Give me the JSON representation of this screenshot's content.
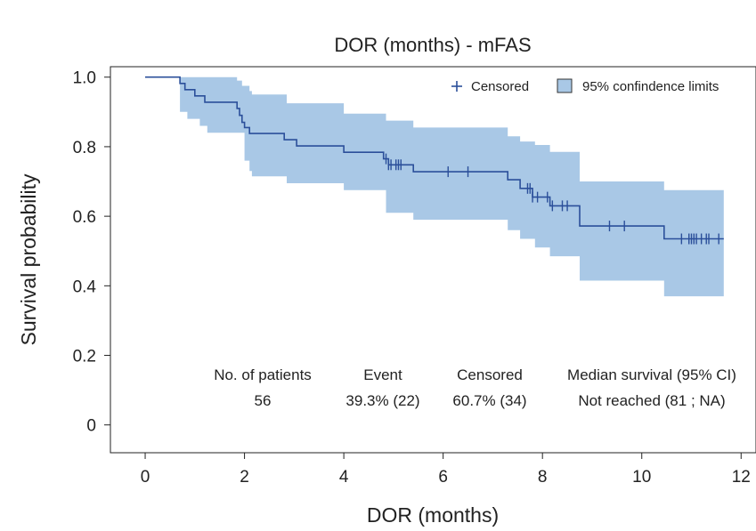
{
  "chart_data": {
    "type": "km_curve",
    "title": "DOR (months) - mFAS",
    "xlabel": "DOR (months)",
    "ylabel": "Survival probability",
    "xlim": [
      -0.7,
      12.3
    ],
    "ylim": [
      -0.08,
      1.03
    ],
    "x_ticks": [
      0,
      2,
      4,
      6,
      8,
      10,
      12
    ],
    "y_ticks": [
      0,
      0.2,
      0.4,
      0.6,
      0.8,
      1.0
    ],
    "y_tick_labels": [
      "0",
      "0.2",
      "0.4",
      "0.6",
      "0.8",
      "1.0"
    ],
    "colors": {
      "line": "#2b4f9a",
      "band": "#a9c8e6",
      "band_edge": "#a9c8e6",
      "axis": "#222222"
    },
    "legend": {
      "position": "top-right",
      "censored_label": "Censored",
      "ci_label": "95% confindence limits"
    },
    "survival_steps": [
      [
        0,
        1.0
      ],
      [
        0.7,
        0.982
      ],
      [
        0.8,
        0.964
      ],
      [
        1.0,
        0.946
      ],
      [
        1.2,
        0.928
      ],
      [
        1.85,
        0.91
      ],
      [
        1.9,
        0.89
      ],
      [
        1.95,
        0.87
      ],
      [
        2.0,
        0.855
      ],
      [
        2.1,
        0.838
      ],
      [
        2.8,
        0.82
      ],
      [
        3.05,
        0.802
      ],
      [
        4.0,
        0.784
      ],
      [
        4.8,
        0.765
      ],
      [
        4.9,
        0.748
      ],
      [
        5.4,
        0.728
      ],
      [
        7.3,
        0.705
      ],
      [
        7.55,
        0.68
      ],
      [
        7.8,
        0.655
      ],
      [
        8.15,
        0.63
      ],
      [
        8.75,
        0.572
      ],
      [
        10.45,
        0.535
      ],
      [
        11.65,
        0.535
      ]
    ],
    "ci_lower_steps": [
      [
        0,
        1.0
      ],
      [
        0.7,
        0.9
      ],
      [
        0.85,
        0.88
      ],
      [
        1.1,
        0.86
      ],
      [
        1.25,
        0.84
      ],
      [
        2.0,
        0.76
      ],
      [
        2.1,
        0.73
      ],
      [
        2.15,
        0.715
      ],
      [
        2.85,
        0.695
      ],
      [
        4.0,
        0.675
      ],
      [
        4.85,
        0.61
      ],
      [
        5.4,
        0.59
      ],
      [
        7.3,
        0.56
      ],
      [
        7.55,
        0.535
      ],
      [
        7.85,
        0.51
      ],
      [
        8.15,
        0.485
      ],
      [
        8.75,
        0.415
      ],
      [
        10.45,
        0.37
      ],
      [
        11.65,
        0.37
      ]
    ],
    "ci_upper_steps": [
      [
        0,
        1.0
      ],
      [
        1.85,
        0.99
      ],
      [
        1.95,
        0.975
      ],
      [
        2.1,
        0.96
      ],
      [
        2.15,
        0.95
      ],
      [
        2.85,
        0.925
      ],
      [
        4.0,
        0.895
      ],
      [
        4.85,
        0.875
      ],
      [
        5.4,
        0.855
      ],
      [
        7.3,
        0.83
      ],
      [
        7.55,
        0.815
      ],
      [
        7.85,
        0.805
      ],
      [
        8.15,
        0.785
      ],
      [
        8.75,
        0.7
      ],
      [
        10.45,
        0.675
      ],
      [
        11.65,
        0.675
      ]
    ],
    "censored_times": [
      4.85,
      4.9,
      4.95,
      5.05,
      5.1,
      5.15,
      6.1,
      6.5,
      7.7,
      7.75,
      7.8,
      7.9,
      8.1,
      8.2,
      8.4,
      8.5,
      9.35,
      9.65,
      10.8,
      10.95,
      11.0,
      11.05,
      11.1,
      11.2,
      11.3,
      11.35,
      11.55
    ],
    "summary_table": {
      "columns": [
        "No. of patients",
        "Event",
        "Censored",
        "Median survival (95% CI)"
      ],
      "values": [
        "56",
        "39.3% (22)",
        "60.7% (34)",
        "Not reached (81 ; NA)"
      ]
    }
  }
}
